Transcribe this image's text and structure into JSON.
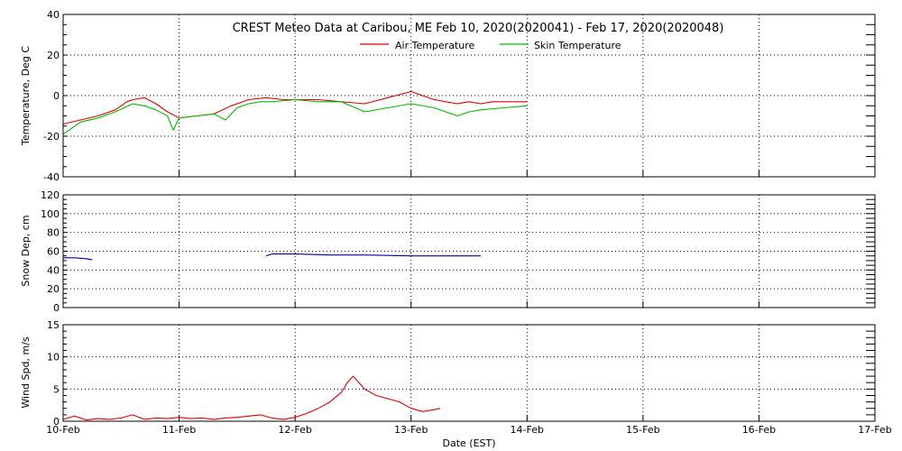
{
  "colors": {
    "air": "#e00000",
    "skin": "#00bb00",
    "snow": "#0000aa",
    "wind": "#e00000",
    "grid": "#000000",
    "background": "#ffffff"
  },
  "chart_data": [
    {
      "type": "line",
      "title": "CREST Meteo Data at Caribou, ME   Feb 10, 2020(2020041) - Feb 17, 2020(2020048)",
      "ylabel": "Temperature, Deg C",
      "ylim": [
        -40,
        40
      ],
      "y_ticks": [
        "40",
        "20",
        "0",
        "-20",
        "-40"
      ],
      "xlim": [
        0,
        7
      ],
      "grid": true,
      "legend_position": "top-center",
      "series": [
        {
          "name": "Air Temperature",
          "color": "#e00000",
          "x": [
            0.0,
            0.15,
            0.3,
            0.45,
            0.55,
            0.6,
            0.7,
            0.8,
            0.9,
            1.0,
            1.15,
            1.3,
            1.45,
            1.6,
            1.75,
            1.9,
            2.0,
            2.2,
            2.4,
            2.6,
            2.8,
            3.0,
            3.2,
            3.3,
            3.4,
            3.5,
            3.6,
            3.7,
            3.8,
            4.0
          ],
          "values": [
            -14,
            -12,
            -10,
            -7,
            -3,
            -2,
            -1,
            -4,
            -8,
            -11,
            -10,
            -9,
            -5,
            -2,
            -1,
            -2,
            -2,
            -2,
            -3,
            -4,
            -1,
            2,
            -2,
            -3,
            -4,
            -3,
            -4,
            -3,
            -3,
            -3
          ]
        },
        {
          "name": "Skin Temperature",
          "color": "#00bb00",
          "x": [
            0.0,
            0.15,
            0.3,
            0.45,
            0.6,
            0.7,
            0.8,
            0.9,
            0.95,
            1.0,
            1.15,
            1.3,
            1.4,
            1.5,
            1.6,
            1.7,
            1.8,
            2.0,
            2.2,
            2.4,
            2.6,
            2.8,
            3.0,
            3.2,
            3.4,
            3.5,
            3.6,
            3.8,
            4.0
          ],
          "values": [
            -19,
            -13,
            -11,
            -8,
            -4,
            -5,
            -7,
            -10,
            -17,
            -11,
            -10,
            -9,
            -12,
            -6,
            -4,
            -3,
            -3,
            -2,
            -3,
            -3,
            -8,
            -6,
            -4,
            -6,
            -10,
            -8,
            -7,
            -6,
            -5
          ]
        }
      ]
    },
    {
      "type": "line",
      "ylabel": "Snow Dep, cm",
      "ylim": [
        0,
        120
      ],
      "y_ticks": [
        "120",
        "100",
        "80",
        "60",
        "40",
        "20",
        "0"
      ],
      "xlim": [
        0,
        7
      ],
      "grid": true,
      "series": [
        {
          "color": "#0000aa",
          "segments": [
            {
              "x": [
                0.0,
                0.1,
                0.2,
                0.25
              ],
              "values": [
                53,
                53,
                52,
                51
              ]
            },
            {
              "x": [
                1.75,
                1.8,
                2.0,
                2.3,
                2.6,
                3.0,
                3.4,
                3.6
              ],
              "values": [
                55,
                57,
                57,
                56,
                56,
                55,
                55,
                55
              ]
            }
          ]
        }
      ]
    },
    {
      "type": "line",
      "ylabel": "Wind Spd, m/s",
      "ylim": [
        0,
        15
      ],
      "y_ticks": [
        "15",
        "10",
        "5",
        "0"
      ],
      "xlabel": "Date (EST)",
      "x_tick_labels": [
        "10-Feb",
        "11-Feb",
        "12-Feb",
        "13-Feb",
        "14-Feb",
        "15-Feb",
        "16-Feb",
        "17-Feb"
      ],
      "xlim": [
        0,
        7
      ],
      "grid": true,
      "series": [
        {
          "color": "#e00000",
          "x": [
            0.0,
            0.1,
            0.2,
            0.3,
            0.4,
            0.5,
            0.6,
            0.7,
            0.8,
            0.9,
            1.0,
            1.1,
            1.2,
            1.3,
            1.4,
            1.5,
            1.6,
            1.7,
            1.8,
            1.9,
            2.0,
            2.1,
            2.2,
            2.3,
            2.4,
            2.45,
            2.5,
            2.55,
            2.6,
            2.7,
            2.8,
            2.9,
            3.0,
            3.1,
            3.2,
            3.25
          ],
          "values": [
            0.3,
            0.8,
            0.2,
            0.4,
            0.3,
            0.5,
            1.0,
            0.3,
            0.5,
            0.4,
            0.6,
            0.4,
            0.5,
            0.3,
            0.5,
            0.6,
            0.8,
            1.0,
            0.5,
            0.3,
            0.6,
            1.2,
            2.0,
            3.0,
            4.5,
            6.0,
            7.0,
            6.0,
            5.0,
            4.0,
            3.5,
            3.0,
            2.0,
            1.5,
            1.8,
            2.0
          ]
        }
      ]
    }
  ]
}
